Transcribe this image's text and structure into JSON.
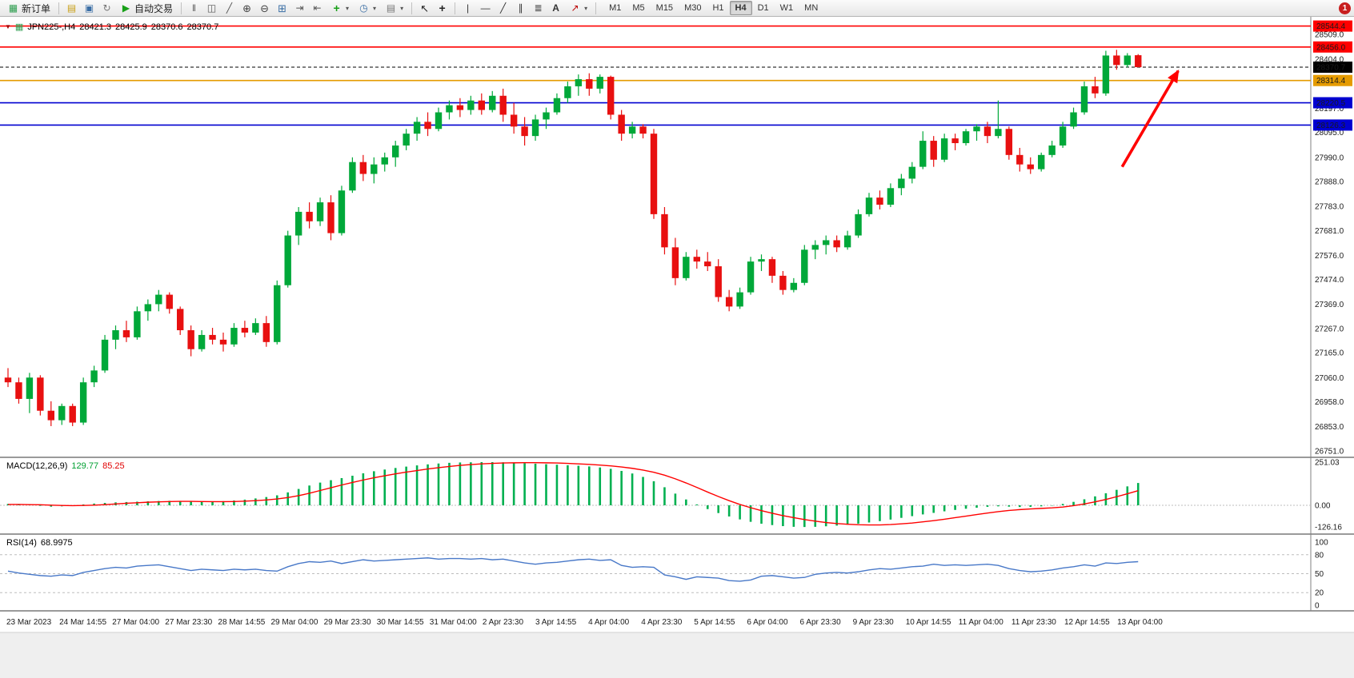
{
  "toolbar": {
    "new_order_label": "新订单",
    "autotrading_label": "自动交易",
    "timeframes": [
      "M1",
      "M5",
      "M15",
      "M30",
      "H1",
      "H4",
      "D1",
      "W1",
      "MN"
    ],
    "active_timeframe": "H4",
    "notification_count": "1"
  },
  "chart_data": {
    "type": "candlestick",
    "title": "JPN225-,H4",
    "header_ohlc": {
      "open": "28421.3",
      "high": "28425.9",
      "low": "28370.6",
      "close": "28370.7"
    },
    "y_axis": {
      "min": 26730,
      "max": 28570,
      "scale_labels": [
        "28509.0",
        "28404.0",
        "28197.0",
        "28095.0",
        "27990.0",
        "27888.0",
        "27783.0",
        "27681.0",
        "27576.0",
        "27474.0",
        "27369.0",
        "27267.0",
        "27165.0",
        "27060.0",
        "26958.0",
        "26853.0",
        "26751.0"
      ]
    },
    "x_labels": [
      "23 Mar 2023",
      "24 Mar 14:55",
      "27 Mar 04:00",
      "27 Mar 23:30",
      "28 Mar 14:55",
      "29 Mar 04:00",
      "29 Mar 23:30",
      "30 Mar 14:55",
      "31 Mar 04:00",
      "2 Apr 23:30",
      "3 Apr 14:55",
      "4 Apr 04:00",
      "4 Apr 23:30",
      "5 Apr 14:55",
      "6 Apr 04:00",
      "6 Apr 23:30",
      "9 Apr 23:30",
      "10 Apr 14:55",
      "11 Apr 04:00",
      "11 Apr 23:30",
      "12 Apr 14:55",
      "13 Apr 04:00"
    ],
    "horizontal_lines": [
      {
        "price": 28544.4,
        "label": "28544.4",
        "color": "#ff0000",
        "style": "solid"
      },
      {
        "price": 28456.0,
        "label": "28456.0",
        "color": "#ff0000",
        "style": "solid"
      },
      {
        "price": 28370.7,
        "label": "28370.7",
        "color": "#000000",
        "style": "dash"
      },
      {
        "price": 28314.4,
        "label": "28314.4",
        "color": "#e59b00",
        "style": "solid"
      },
      {
        "price": 28220.5,
        "label": "28220.5",
        "color": "#0000d0",
        "style": "solid"
      },
      {
        "price": 28126.3,
        "label": "28126.3",
        "color": "#0000d0",
        "style": "solid"
      }
    ],
    "colors": {
      "up": "#00a839",
      "down": "#e81010",
      "axis_text": "#1a1a1a"
    },
    "arrow_annotation": {
      "color": "#ff0000",
      "from_price": 27950,
      "to_price": 28355
    },
    "ohlc": [
      [
        27060,
        27100,
        27020,
        27040
      ],
      [
        27040,
        27060,
        26950,
        26970
      ],
      [
        26970,
        27080,
        26910,
        27060
      ],
      [
        27060,
        27070,
        26900,
        26920
      ],
      [
        26920,
        26960,
        26855,
        26880
      ],
      [
        26880,
        26950,
        26860,
        26940
      ],
      [
        26940,
        26950,
        26855,
        26870
      ],
      [
        26870,
        27060,
        26860,
        27040
      ],
      [
        27040,
        27110,
        27020,
        27090
      ],
      [
        27090,
        27240,
        27080,
        27220
      ],
      [
        27220,
        27280,
        27180,
        27260
      ],
      [
        27260,
        27300,
        27210,
        27230
      ],
      [
        27230,
        27360,
        27220,
        27340
      ],
      [
        27340,
        27390,
        27300,
        27370
      ],
      [
        27370,
        27430,
        27340,
        27410
      ],
      [
        27410,
        27420,
        27330,
        27350
      ],
      [
        27350,
        27360,
        27240,
        27260
      ],
      [
        27260,
        27280,
        27150,
        27180
      ],
      [
        27180,
        27260,
        27170,
        27240
      ],
      [
        27240,
        27270,
        27200,
        27220
      ],
      [
        27220,
        27250,
        27170,
        27200
      ],
      [
        27200,
        27290,
        27190,
        27270
      ],
      [
        27270,
        27300,
        27230,
        27250
      ],
      [
        27250,
        27310,
        27240,
        27290
      ],
      [
        27290,
        27320,
        27190,
        27210
      ],
      [
        27210,
        27470,
        27200,
        27450
      ],
      [
        27450,
        27680,
        27440,
        27660
      ],
      [
        27660,
        27780,
        27620,
        27760
      ],
      [
        27760,
        27800,
        27690,
        27720
      ],
      [
        27720,
        27820,
        27700,
        27800
      ],
      [
        27800,
        27830,
        27640,
        27670
      ],
      [
        27670,
        27870,
        27660,
        27850
      ],
      [
        27850,
        27990,
        27840,
        27970
      ],
      [
        27970,
        28000,
        27890,
        27920
      ],
      [
        27920,
        27990,
        27880,
        27960
      ],
      [
        27960,
        28010,
        27930,
        27990
      ],
      [
        27990,
        28060,
        27950,
        28040
      ],
      [
        28040,
        28110,
        28020,
        28090
      ],
      [
        28090,
        28160,
        28060,
        28140
      ],
      [
        28140,
        28180,
        28080,
        28110
      ],
      [
        28110,
        28200,
        28100,
        28180
      ],
      [
        28180,
        28230,
        28150,
        28210
      ],
      [
        28210,
        28240,
        28160,
        28190
      ],
      [
        28190,
        28250,
        28170,
        28230
      ],
      [
        28230,
        28260,
        28170,
        28190
      ],
      [
        28190,
        28270,
        28180,
        28250
      ],
      [
        28250,
        28280,
        28140,
        28170
      ],
      [
        28170,
        28220,
        28090,
        28120
      ],
      [
        28120,
        28160,
        28040,
        28080
      ],
      [
        28080,
        28170,
        28060,
        28150
      ],
      [
        28150,
        28200,
        28110,
        28180
      ],
      [
        28180,
        28260,
        28170,
        28240
      ],
      [
        28240,
        28310,
        28220,
        28290
      ],
      [
        28290,
        28340,
        28250,
        28320
      ],
      [
        28320,
        28345,
        28250,
        28280
      ],
      [
        28280,
        28340,
        28260,
        28330
      ],
      [
        28330,
        28335,
        28150,
        28170
      ],
      [
        28170,
        28190,
        28060,
        28090
      ],
      [
        28090,
        28140,
        28070,
        28120
      ],
      [
        28120,
        28130,
        28070,
        28090
      ],
      [
        28090,
        28110,
        27730,
        27750
      ],
      [
        27750,
        27780,
        27580,
        27610
      ],
      [
        27610,
        27650,
        27450,
        27480
      ],
      [
        27480,
        27590,
        27470,
        27570
      ],
      [
        27570,
        27600,
        27520,
        27550
      ],
      [
        27550,
        27590,
        27510,
        27530
      ],
      [
        27530,
        27560,
        27380,
        27400
      ],
      [
        27400,
        27430,
        27340,
        27360
      ],
      [
        27360,
        27440,
        27350,
        27420
      ],
      [
        27420,
        27570,
        27410,
        27550
      ],
      [
        27550,
        27580,
        27510,
        27560
      ],
      [
        27560,
        27570,
        27460,
        27490
      ],
      [
        27490,
        27510,
        27410,
        27430
      ],
      [
        27430,
        27480,
        27420,
        27460
      ],
      [
        27460,
        27620,
        27450,
        27600
      ],
      [
        27600,
        27640,
        27560,
        27620
      ],
      [
        27620,
        27660,
        27580,
        27640
      ],
      [
        27640,
        27660,
        27590,
        27610
      ],
      [
        27610,
        27680,
        27600,
        27660
      ],
      [
        27660,
        27770,
        27650,
        27750
      ],
      [
        27750,
        27840,
        27740,
        27820
      ],
      [
        27820,
        27850,
        27770,
        27790
      ],
      [
        27790,
        27880,
        27780,
        27860
      ],
      [
        27860,
        27920,
        27830,
        27900
      ],
      [
        27900,
        27970,
        27880,
        27950
      ],
      [
        27950,
        28100,
        27940,
        28060
      ],
      [
        28060,
        28080,
        27950,
        27980
      ],
      [
        27980,
        28090,
        27970,
        28070
      ],
      [
        28070,
        28090,
        28020,
        28050
      ],
      [
        28050,
        28110,
        28040,
        28100
      ],
      [
        28100,
        28130,
        28060,
        28120
      ],
      [
        28120,
        28140,
        28050,
        28080
      ],
      [
        28080,
        28230,
        28070,
        28110
      ],
      [
        28110,
        28120,
        27980,
        28000
      ],
      [
        28000,
        28030,
        27930,
        27960
      ],
      [
        27960,
        27990,
        27920,
        27940
      ],
      [
        27940,
        28010,
        27930,
        28000
      ],
      [
        28000,
        28060,
        27990,
        28040
      ],
      [
        28040,
        28140,
        28030,
        28120
      ],
      [
        28120,
        28200,
        28110,
        28180
      ],
      [
        28180,
        28310,
        28170,
        28290
      ],
      [
        28290,
        28330,
        28240,
        28260
      ],
      [
        28260,
        28440,
        28250,
        28420
      ],
      [
        28420,
        28444,
        28360,
        28380
      ],
      [
        28380,
        28430,
        28370,
        28420
      ],
      [
        28421.3,
        28425.9,
        28370.6,
        28370.7
      ]
    ],
    "indicators": [
      {
        "name": "MACD",
        "title": "MACD(12,26,9)",
        "value_main": "129.77",
        "value_signal": "85.25",
        "axis_labels": [
          "251.03",
          "0.00",
          "-126.16"
        ],
        "axis_values": [
          251.03,
          0,
          -126.16
        ],
        "colors": {
          "histogram": "#00b050",
          "signal": "#ff0000"
        },
        "histogram": [
          8,
          5,
          3,
          -3,
          -8,
          -6,
          -2,
          5,
          10,
          14,
          17,
          19,
          21,
          23,
          25,
          26,
          25,
          22,
          20,
          21,
          24,
          28,
          33,
          40,
          48,
          58,
          75,
          95,
          115,
          132,
          146,
          158,
          172,
          186,
          198,
          208,
          217,
          225,
          232,
          238,
          243,
          247,
          249,
          250,
          251.03,
          251,
          250,
          248,
          245,
          242,
          239,
          236,
          233,
          230,
          226,
          220,
          212,
          200,
          185,
          165,
          140,
          105,
          68,
          34,
          5,
          -22,
          -45,
          -65,
          -82,
          -96,
          -107,
          -115,
          -121,
          -125,
          -126.16,
          -125,
          -122,
          -118,
          -113,
          -107,
          -100,
          -92,
          -83,
          -73,
          -63,
          -53,
          -44,
          -35,
          -27,
          -20,
          -14,
          -9,
          -6,
          -8,
          -10,
          -9,
          -6,
          -2,
          8,
          20,
          35,
          52,
          70,
          90,
          110,
          129.77
        ],
        "signal": [
          5,
          5,
          4,
          3,
          1,
          -1,
          -2,
          -1,
          1,
          4,
          8,
          12,
          15,
          18,
          20,
          22,
          23,
          23,
          22,
          21,
          21,
          22,
          24,
          27,
          31,
          37,
          45,
          56,
          70,
          86,
          102,
          118,
          133,
          147,
          160,
          172,
          183,
          193,
          202,
          211,
          219,
          226,
          232,
          237,
          241,
          244,
          246,
          247,
          248,
          248,
          247,
          246,
          244,
          241,
          238,
          234,
          229,
          223,
          215,
          205,
          192,
          175,
          154,
          130,
          104,
          77,
          51,
          27,
          5,
          -14,
          -31,
          -46,
          -60,
          -72,
          -83,
          -92,
          -100,
          -106,
          -110,
          -113,
          -114,
          -114,
          -112,
          -108,
          -103,
          -96,
          -89,
          -81,
          -72,
          -63,
          -54,
          -45,
          -37,
          -30,
          -25,
          -21,
          -18,
          -15,
          -10,
          -2,
          8,
          20,
          34,
          50,
          67,
          85.25
        ]
      },
      {
        "name": "RSI",
        "title": "RSI(14)",
        "value": "68.9975",
        "axis_labels": [
          "100",
          "80",
          "50",
          "20",
          "0"
        ],
        "axis_values": [
          100,
          80,
          50,
          20,
          0
        ],
        "levels": [
          80,
          50,
          20
        ],
        "color": "#4878c8",
        "values": [
          54,
          51,
          49,
          47,
          46,
          48,
          47,
          52,
          55,
          58,
          60,
          59,
          62,
          63,
          64,
          61,
          58,
          55,
          57,
          56,
          55,
          57,
          56,
          57,
          55,
          54,
          61,
          66,
          69,
          68,
          70,
          66,
          69,
          72,
          70,
          71,
          72,
          73,
          74,
          75,
          73,
          74,
          74,
          73,
          74,
          72,
          73,
          70,
          67,
          65,
          67,
          68,
          70,
          72,
          73,
          71,
          72,
          63,
          60,
          61,
          60,
          48,
          45,
          41,
          45,
          44,
          43,
          39,
          38,
          40,
          46,
          47,
          45,
          43,
          44,
          49,
          51,
          52,
          51,
          53,
          56,
          58,
          57,
          59,
          61,
          62,
          65,
          63,
          64,
          63,
          64,
          65,
          63,
          58,
          55,
          53,
          54,
          56,
          59,
          61,
          64,
          62,
          67,
          66,
          68,
          68.9975
        ]
      }
    ]
  }
}
